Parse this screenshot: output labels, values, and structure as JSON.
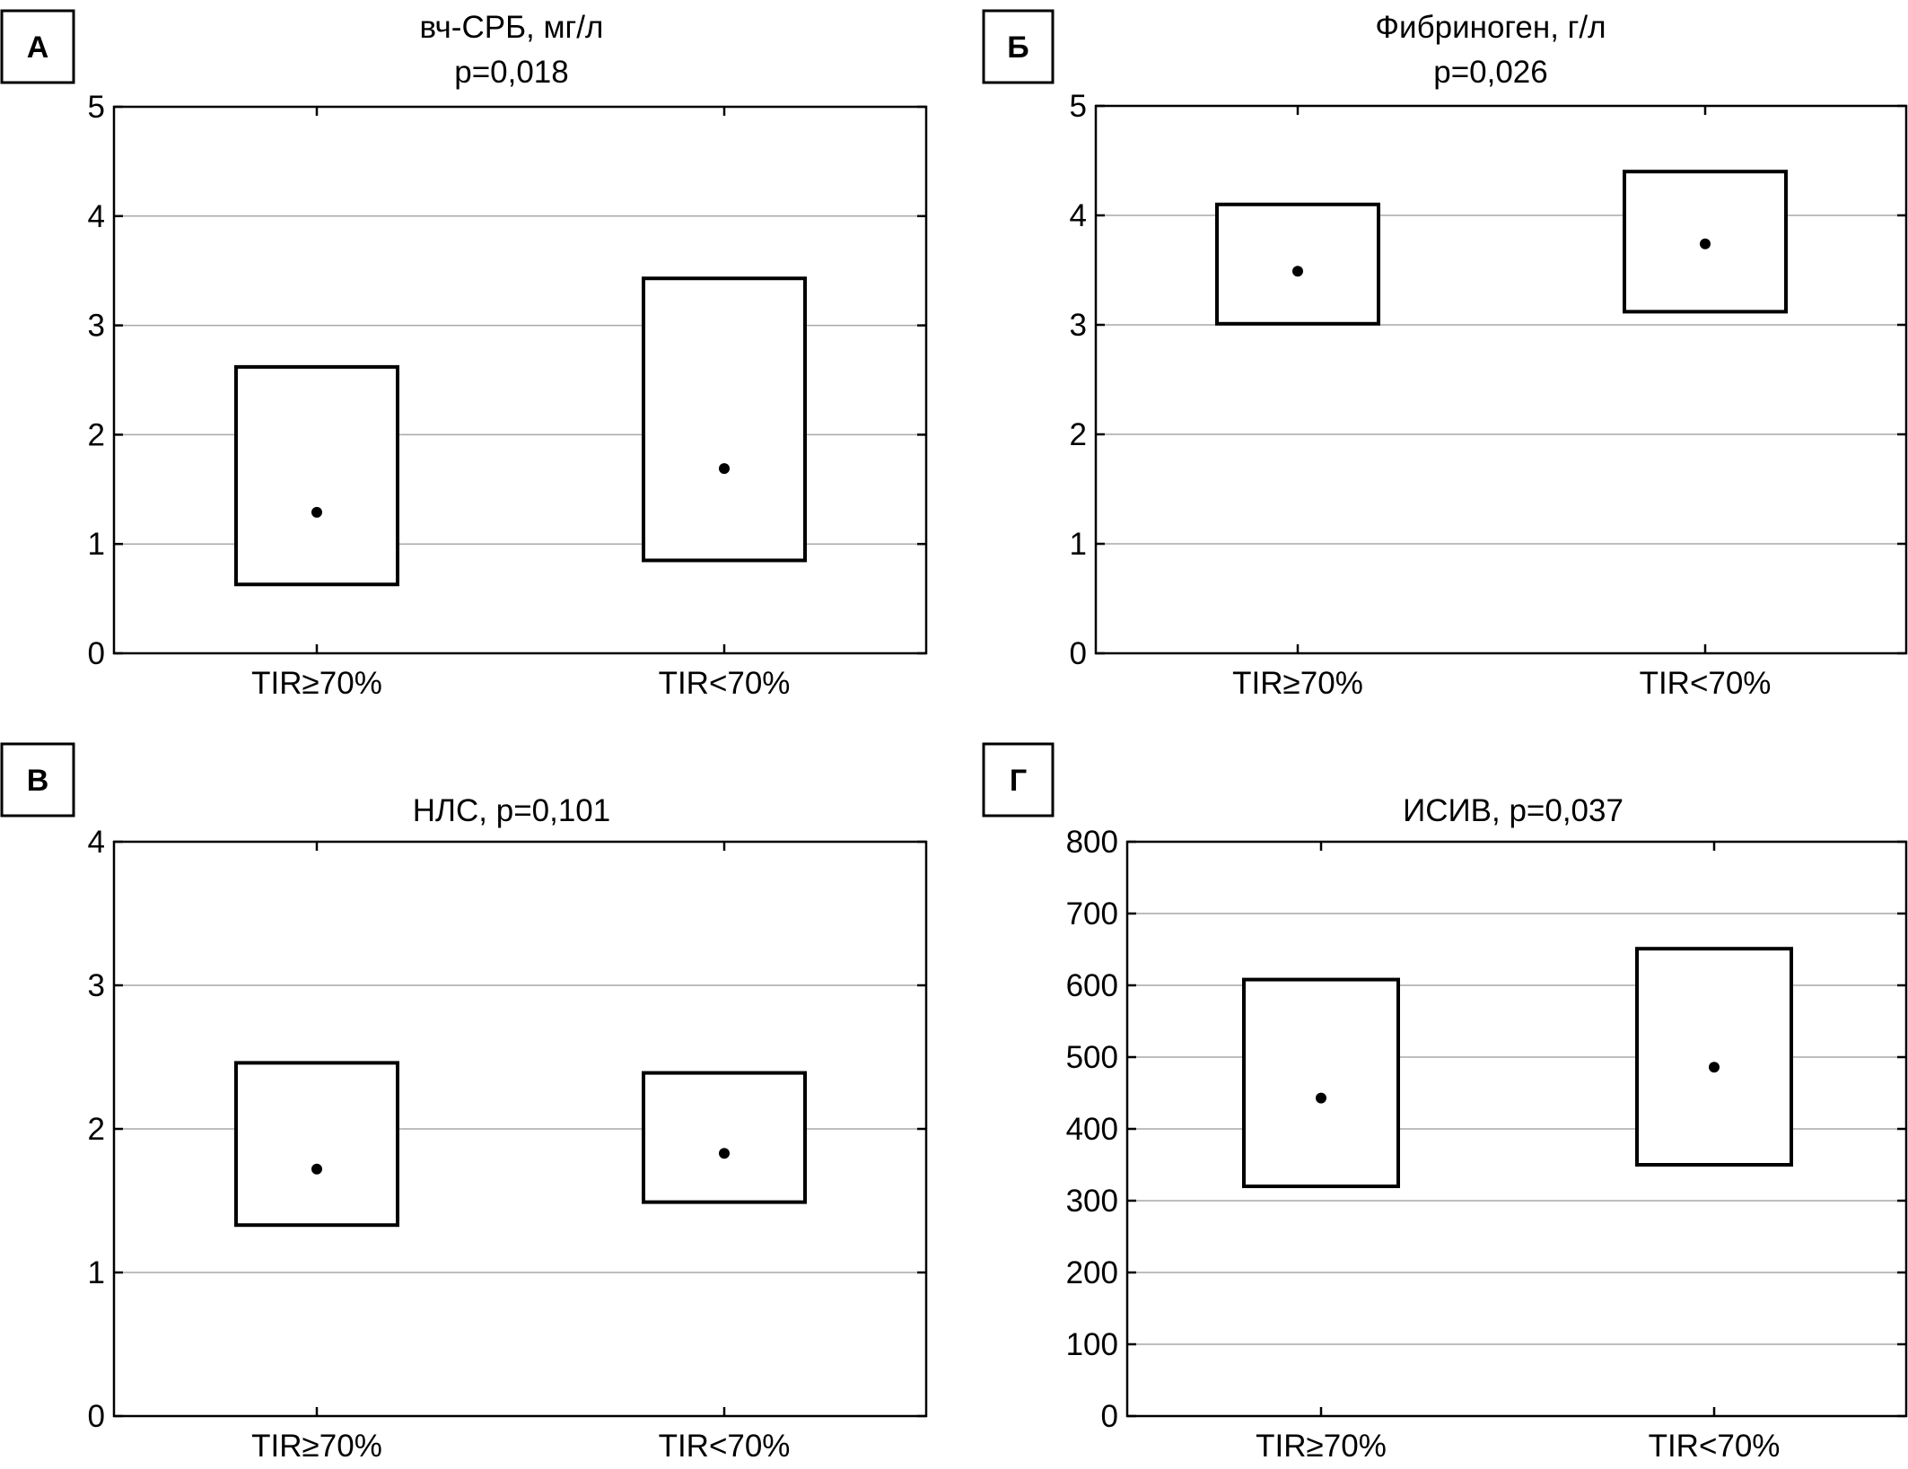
{
  "chart_data": [
    {
      "type": "box",
      "panel_label": "А",
      "title_lines": [
        "вч-СРБ, мг/л",
        "p=0,018"
      ],
      "xlabel": "",
      "ylabel": "",
      "categories": [
        "TIR≥70%",
        "TIR<70%"
      ],
      "ylim": [
        0,
        5
      ],
      "yticks": [
        0,
        1,
        2,
        3,
        4,
        5
      ],
      "ytick_labels": [
        "0",
        "1",
        "2",
        "3",
        "4",
        "5"
      ],
      "grid": true,
      "series": [
        {
          "category": "TIR≥70%",
          "median": 1.29,
          "q1": 0.63,
          "q3": 2.62
        },
        {
          "category": "TIR<70%",
          "median": 1.69,
          "q1": 0.85,
          "q3": 3.43
        }
      ]
    },
    {
      "type": "box",
      "panel_label": "Б",
      "title_lines": [
        "Фибриноген, г/л",
        "p=0,026"
      ],
      "xlabel": "",
      "ylabel": "",
      "categories": [
        "TIR≥70%",
        "TIR<70%"
      ],
      "ylim": [
        0,
        5
      ],
      "yticks": [
        0,
        1,
        2,
        3,
        4,
        5
      ],
      "ytick_labels": [
        "0",
        "1",
        "2",
        "3",
        "4",
        "5"
      ],
      "grid": true,
      "series": [
        {
          "category": "TIR≥70%",
          "median": 3.49,
          "q1": 3.01,
          "q3": 4.1
        },
        {
          "category": "TIR<70%",
          "median": 3.74,
          "q1": 3.12,
          "q3": 4.4
        }
      ]
    },
    {
      "type": "box",
      "panel_label": "В",
      "title_lines": [
        "НЛС, p=0,101"
      ],
      "xlabel": "",
      "ylabel": "",
      "categories": [
        "TIR≥70%",
        "TIR<70%"
      ],
      "ylim": [
        0,
        4
      ],
      "yticks": [
        0,
        1,
        2,
        3,
        4
      ],
      "ytick_labels": [
        "0",
        "1",
        "2",
        "3",
        "4"
      ],
      "grid": true,
      "series": [
        {
          "category": "TIR≥70%",
          "median": 1.72,
          "q1": 1.33,
          "q3": 2.46
        },
        {
          "category": "TIR<70%",
          "median": 1.83,
          "q1": 1.49,
          "q3": 2.39
        }
      ]
    },
    {
      "type": "box",
      "panel_label": "Г",
      "title_lines": [
        "ИСИВ, p=0,037"
      ],
      "xlabel": "",
      "ylabel": "",
      "categories": [
        "TIR≥70%",
        "TIR<70%"
      ],
      "ylim": [
        0,
        800
      ],
      "yticks": [
        0,
        100,
        200,
        300,
        400,
        500,
        600,
        700,
        800
      ],
      "ytick_labels": [
        "0",
        "100",
        "200",
        "300",
        "400",
        "500",
        "600",
        "700",
        "800"
      ],
      "grid": true,
      "series": [
        {
          "category": "TIR≥70%",
          "median": 443,
          "q1": 320,
          "q3": 608
        },
        {
          "category": "TIR<70%",
          "median": 486,
          "q1": 350,
          "q3": 651
        }
      ]
    }
  ],
  "colors": {
    "axis": "#000000",
    "grid": "#a8a8a8",
    "box_stroke": "#000000",
    "median_dot": "#000000",
    "background": "#ffffff"
  }
}
